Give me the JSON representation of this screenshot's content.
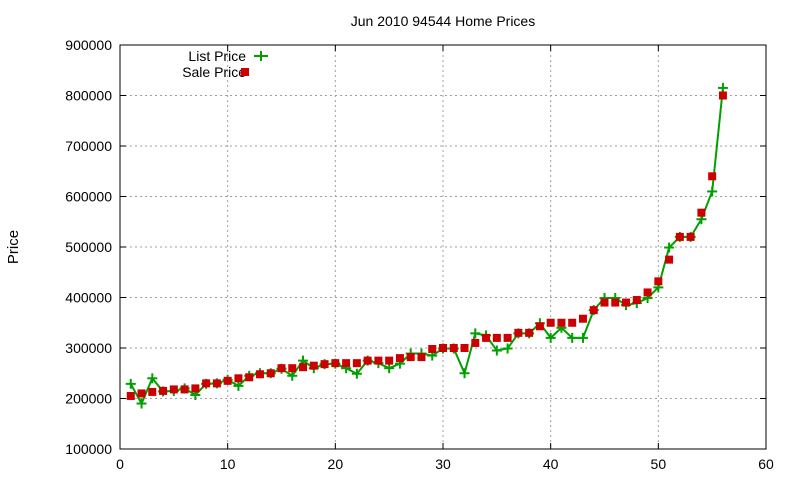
{
  "chart_data": {
    "type": "line",
    "title": "Jun 2010 94544 Home Prices",
    "xlabel": "",
    "ylabel": "Price",
    "xlim": [
      0,
      60
    ],
    "ylim": [
      100000,
      900000
    ],
    "xticks": [
      0,
      10,
      20,
      30,
      40,
      50,
      60
    ],
    "yticks": [
      100000,
      200000,
      300000,
      400000,
      500000,
      600000,
      700000,
      800000,
      900000
    ],
    "grid": true,
    "legend_position": "top-left",
    "series": [
      {
        "name": "List Price",
        "style": "line-with-plus-markers",
        "color": "#00a000",
        "x": [
          1,
          2,
          3,
          4,
          5,
          6,
          7,
          8,
          9,
          10,
          11,
          12,
          13,
          14,
          15,
          16,
          17,
          18,
          19,
          20,
          21,
          22,
          23,
          24,
          25,
          26,
          27,
          28,
          29,
          30,
          31,
          32,
          33,
          34,
          35,
          36,
          37,
          38,
          39,
          40,
          41,
          42,
          43,
          44,
          45,
          46,
          47,
          48,
          49,
          50,
          51,
          52,
          53,
          54,
          55,
          56
        ],
        "values": [
          229000,
          190000,
          240000,
          214000,
          215000,
          220000,
          207000,
          229000,
          230000,
          237000,
          225000,
          245000,
          250000,
          250000,
          259000,
          245000,
          275000,
          260000,
          268000,
          269000,
          260000,
          249000,
          275000,
          270000,
          260000,
          269000,
          289000,
          289000,
          285000,
          299000,
          299000,
          250000,
          329000,
          325000,
          295000,
          299000,
          329000,
          329000,
          349000,
          320000,
          340000,
          320000,
          320000,
          375000,
          399000,
          399000,
          385000,
          389000,
          399000,
          420000,
          499000,
          520000,
          520000,
          555000,
          610000,
          815000
        ]
      },
      {
        "name": "Sale Price",
        "style": "square-markers",
        "color": "#cc0000",
        "x": [
          1,
          2,
          3,
          4,
          5,
          6,
          7,
          8,
          9,
          10,
          11,
          12,
          13,
          14,
          15,
          16,
          17,
          18,
          19,
          20,
          21,
          22,
          23,
          24,
          25,
          26,
          27,
          28,
          29,
          30,
          31,
          32,
          33,
          34,
          35,
          36,
          37,
          38,
          39,
          40,
          41,
          42,
          43,
          44,
          45,
          46,
          47,
          48,
          49,
          50,
          51,
          52,
          53,
          54,
          55,
          56
        ],
        "values": [
          205000,
          210000,
          213000,
          215000,
          218000,
          218000,
          220000,
          230000,
          230000,
          235000,
          240000,
          242000,
          248000,
          250000,
          260000,
          260000,
          262000,
          265000,
          268000,
          270000,
          270000,
          270000,
          275000,
          275000,
          275000,
          280000,
          282000,
          282000,
          298000,
          300000,
          300000,
          300000,
          310000,
          320000,
          320000,
          320000,
          330000,
          330000,
          343000,
          350000,
          350000,
          350000,
          358000,
          375000,
          390000,
          390000,
          390000,
          395000,
          410000,
          432000,
          475000,
          520000,
          520000,
          568000,
          640000,
          800000
        ]
      }
    ]
  }
}
